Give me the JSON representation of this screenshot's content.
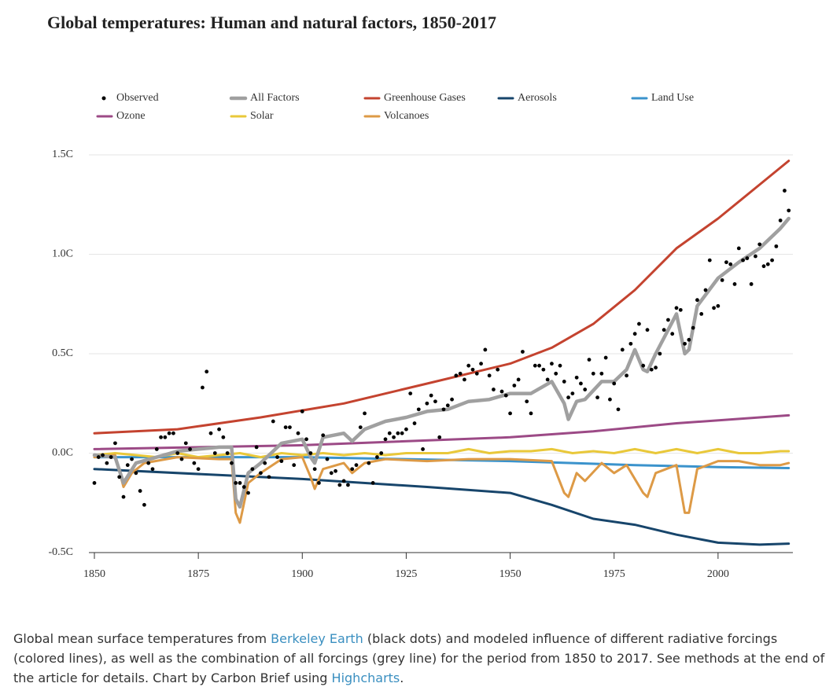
{
  "chart_data": {
    "type": "line",
    "title": "Global temperatures: Human and natural factors, 1850-2017",
    "xlim": [
      1850,
      2018
    ],
    "xticks": [
      1850,
      1875,
      1900,
      1925,
      1950,
      1975,
      2000
    ],
    "ylim": [
      -0.5,
      1.5
    ],
    "yticks": [
      {
        "value": -0.5,
        "label": "-0.5C"
      },
      {
        "value": 0,
        "label": "0.0C"
      },
      {
        "value": 0.5,
        "label": "0.5C"
      },
      {
        "value": 1.0,
        "label": "1.0C"
      },
      {
        "value": 1.5,
        "label": "1.5C"
      }
    ],
    "grid": true,
    "legend": "top",
    "series": [
      {
        "name": "Greenhouse Gases",
        "color": "#c4432f",
        "style": "line",
        "x": [
          1850,
          1870,
          1890,
          1910,
          1930,
          1950,
          1960,
          1970,
          1980,
          1990,
          2000,
          2010,
          2017
        ],
        "values": [
          0.1,
          0.12,
          0.18,
          0.25,
          0.35,
          0.45,
          0.53,
          0.65,
          0.82,
          1.03,
          1.18,
          1.35,
          1.47
        ]
      },
      {
        "name": "Aerosols",
        "color": "#17456b",
        "style": "line",
        "x": [
          1850,
          1900,
          1930,
          1950,
          1960,
          1970,
          1980,
          1990,
          2000,
          2010,
          2017
        ],
        "values": [
          -0.08,
          -0.13,
          -0.17,
          -0.2,
          -0.26,
          -0.33,
          -0.36,
          -0.41,
          -0.45,
          -0.46,
          -0.455
        ]
      },
      {
        "name": "Land Use",
        "color": "#3b93cc",
        "style": "line",
        "x": [
          1850,
          1900,
          1950,
          1980,
          2000,
          2017
        ],
        "values": [
          -0.02,
          -0.02,
          -0.04,
          -0.06,
          -0.07,
          -0.075
        ]
      },
      {
        "name": "Ozone",
        "color": "#9c4a86",
        "style": "line",
        "x": [
          1850,
          1900,
          1950,
          1970,
          1990,
          2017
        ],
        "values": [
          0.02,
          0.04,
          0.08,
          0.11,
          0.15,
          0.19
        ]
      },
      {
        "name": "Solar",
        "color": "#e9c83a",
        "style": "line",
        "x": [
          1850,
          1855,
          1860,
          1865,
          1870,
          1875,
          1880,
          1885,
          1890,
          1895,
          1900,
          1905,
          1910,
          1915,
          1920,
          1925,
          1930,
          1935,
          1940,
          1945,
          1950,
          1955,
          1960,
          1965,
          1970,
          1975,
          1980,
          1985,
          1990,
          1995,
          2000,
          2005,
          2010,
          2015,
          2017
        ],
        "values": [
          -0.01,
          0.0,
          -0.01,
          -0.02,
          0.0,
          -0.02,
          -0.01,
          0.0,
          -0.02,
          0.0,
          -0.01,
          0.0,
          -0.01,
          0.0,
          -0.01,
          0.0,
          0.0,
          0.0,
          0.02,
          0.0,
          0.01,
          0.01,
          0.02,
          0.0,
          0.01,
          0.0,
          0.02,
          0.0,
          0.02,
          0.0,
          0.02,
          0.0,
          0.0,
          0.01,
          0.01
        ]
      },
      {
        "name": "Volcanoes",
        "color": "#dd9a46",
        "style": "line",
        "x": [
          1850,
          1855,
          1857,
          1859,
          1862,
          1870,
          1880,
          1883,
          1884,
          1885,
          1887,
          1890,
          1895,
          1900,
          1902,
          1903,
          1905,
          1910,
          1912,
          1915,
          1920,
          1930,
          1940,
          1950,
          1960,
          1963,
          1964,
          1966,
          1968,
          1972,
          1975,
          1978,
          1982,
          1983,
          1985,
          1990,
          1992,
          1993,
          1995,
          2000,
          2005,
          2010,
          2015,
          2017
        ],
        "values": [
          -0.02,
          -0.01,
          -0.17,
          -0.1,
          -0.05,
          -0.02,
          -0.03,
          -0.03,
          -0.3,
          -0.35,
          -0.15,
          -0.1,
          -0.03,
          -0.02,
          -0.12,
          -0.18,
          -0.08,
          -0.05,
          -0.1,
          -0.05,
          -0.03,
          -0.04,
          -0.03,
          -0.03,
          -0.04,
          -0.2,
          -0.22,
          -0.1,
          -0.14,
          -0.05,
          -0.1,
          -0.06,
          -0.2,
          -0.22,
          -0.1,
          -0.06,
          -0.3,
          -0.3,
          -0.08,
          -0.04,
          -0.04,
          -0.06,
          -0.06,
          -0.05
        ]
      },
      {
        "name": "All Factors",
        "color": "#a0a0a0",
        "style": "thick",
        "x": [
          1850,
          1855,
          1857,
          1860,
          1865,
          1870,
          1875,
          1880,
          1883,
          1884,
          1885,
          1887,
          1890,
          1895,
          1900,
          1902,
          1903,
          1905,
          1910,
          1912,
          1915,
          1920,
          1925,
          1930,
          1935,
          1940,
          1945,
          1950,
          1955,
          1960,
          1963,
          1964,
          1966,
          1968,
          1972,
          1975,
          1978,
          1980,
          1982,
          1983,
          1985,
          1990,
          1992,
          1993,
          1995,
          2000,
          2005,
          2010,
          2015,
          2017
        ],
        "values": [
          -0.01,
          -0.02,
          -0.15,
          -0.05,
          -0.02,
          0.01,
          0.02,
          0.03,
          0.03,
          -0.23,
          -0.27,
          -0.1,
          -0.05,
          0.05,
          0.07,
          -0.02,
          -0.05,
          0.08,
          0.1,
          0.06,
          0.12,
          0.16,
          0.18,
          0.21,
          0.22,
          0.26,
          0.27,
          0.3,
          0.3,
          0.36,
          0.25,
          0.17,
          0.26,
          0.27,
          0.36,
          0.36,
          0.42,
          0.52,
          0.42,
          0.41,
          0.5,
          0.7,
          0.5,
          0.52,
          0.74,
          0.88,
          0.96,
          1.03,
          1.13,
          1.18
        ]
      },
      {
        "name": "Observed",
        "color": "#000000",
        "style": "dots",
        "x": [
          1850,
          1851,
          1852,
          1853,
          1854,
          1855,
          1856,
          1857,
          1858,
          1859,
          1860,
          1861,
          1862,
          1863,
          1864,
          1865,
          1866,
          1867,
          1868,
          1869,
          1870,
          1871,
          1872,
          1873,
          1874,
          1875,
          1876,
          1877,
          1878,
          1879,
          1880,
          1881,
          1882,
          1883,
          1884,
          1885,
          1886,
          1887,
          1888,
          1889,
          1890,
          1891,
          1892,
          1893,
          1894,
          1895,
          1896,
          1897,
          1898,
          1899,
          1900,
          1901,
          1902,
          1903,
          1904,
          1905,
          1906,
          1907,
          1908,
          1909,
          1910,
          1911,
          1912,
          1913,
          1914,
          1915,
          1916,
          1917,
          1918,
          1919,
          1920,
          1921,
          1922,
          1923,
          1924,
          1925,
          1926,
          1927,
          1928,
          1929,
          1930,
          1931,
          1932,
          1933,
          1934,
          1935,
          1936,
          1937,
          1938,
          1939,
          1940,
          1941,
          1942,
          1943,
          1944,
          1945,
          1946,
          1947,
          1948,
          1949,
          1950,
          1951,
          1952,
          1953,
          1954,
          1955,
          1956,
          1957,
          1958,
          1959,
          1960,
          1961,
          1962,
          1963,
          1964,
          1965,
          1966,
          1967,
          1968,
          1969,
          1970,
          1971,
          1972,
          1973,
          1974,
          1975,
          1976,
          1977,
          1978,
          1979,
          1980,
          1981,
          1982,
          1983,
          1984,
          1985,
          1986,
          1987,
          1988,
          1989,
          1990,
          1991,
          1992,
          1993,
          1994,
          1995,
          1996,
          1997,
          1998,
          1999,
          2000,
          2001,
          2002,
          2003,
          2004,
          2005,
          2006,
          2007,
          2008,
          2009,
          2010,
          2011,
          2012,
          2013,
          2014,
          2015,
          2016,
          2017
        ],
        "values": [
          -0.15,
          -0.02,
          -0.01,
          -0.05,
          -0.02,
          0.05,
          -0.12,
          -0.22,
          -0.06,
          -0.03,
          -0.1,
          -0.19,
          -0.26,
          -0.05,
          -0.08,
          0.02,
          0.08,
          0.08,
          0.1,
          0.1,
          0.0,
          -0.03,
          0.05,
          0.02,
          -0.05,
          -0.08,
          0.33,
          0.41,
          0.1,
          0.0,
          0.12,
          0.08,
          0.0,
          -0.05,
          -0.15,
          -0.15,
          -0.17,
          -0.2,
          -0.08,
          0.03,
          -0.1,
          -0.05,
          -0.12,
          0.16,
          -0.02,
          -0.04,
          0.13,
          0.13,
          -0.06,
          0.1,
          0.21,
          0.07,
          0.0,
          -0.08,
          -0.15,
          0.09,
          -0.03,
          -0.1,
          -0.09,
          -0.16,
          -0.14,
          -0.16,
          -0.08,
          -0.06,
          0.13,
          0.2,
          -0.05,
          -0.15,
          -0.02,
          0.0,
          0.07,
          0.1,
          0.08,
          0.1,
          0.1,
          0.12,
          0.3,
          0.15,
          0.22,
          0.02,
          0.25,
          0.29,
          0.26,
          0.08,
          0.22,
          0.24,
          0.27,
          0.39,
          0.4,
          0.37,
          0.44,
          0.42,
          0.4,
          0.45,
          0.52,
          0.39,
          0.32,
          0.42,
          0.31,
          0.29,
          0.2,
          0.34,
          0.37,
          0.51,
          0.26,
          0.2,
          0.44,
          0.44,
          0.42,
          0.37,
          0.45,
          0.4,
          0.44,
          0.36,
          0.28,
          0.3,
          0.38,
          0.35,
          0.32,
          0.47,
          0.4,
          0.28,
          0.4,
          0.48,
          0.27,
          0.35,
          0.22,
          0.52,
          0.39,
          0.55,
          0.6,
          0.65,
          0.44,
          0.62,
          0.42,
          0.43,
          0.5,
          0.62,
          0.67,
          0.6,
          0.73,
          0.72,
          0.55,
          0.57,
          0.63,
          0.77,
          0.7,
          0.82,
          0.97,
          0.73,
          0.74,
          0.87,
          0.96,
          0.95,
          0.85,
          1.03,
          0.97,
          0.98,
          0.85,
          0.99,
          1.05,
          0.94,
          0.95,
          0.97,
          1.04,
          1.17,
          1.32,
          1.22
        ]
      }
    ],
    "legend_order": [
      7,
      6,
      0,
      1,
      2,
      3,
      4,
      5
    ]
  },
  "caption": {
    "text1": "Global mean surface temperatures from ",
    "link1": "Berkeley Earth",
    "text2": " (black dots) and modeled influence of different radiative forcings (colored lines), as well as the combination of all forcings (grey line) for the period from 1850 to 2017. See methods at the end of the article for details. Chart by Carbon Brief using ",
    "link2": "Highcharts",
    "text3": "."
  }
}
